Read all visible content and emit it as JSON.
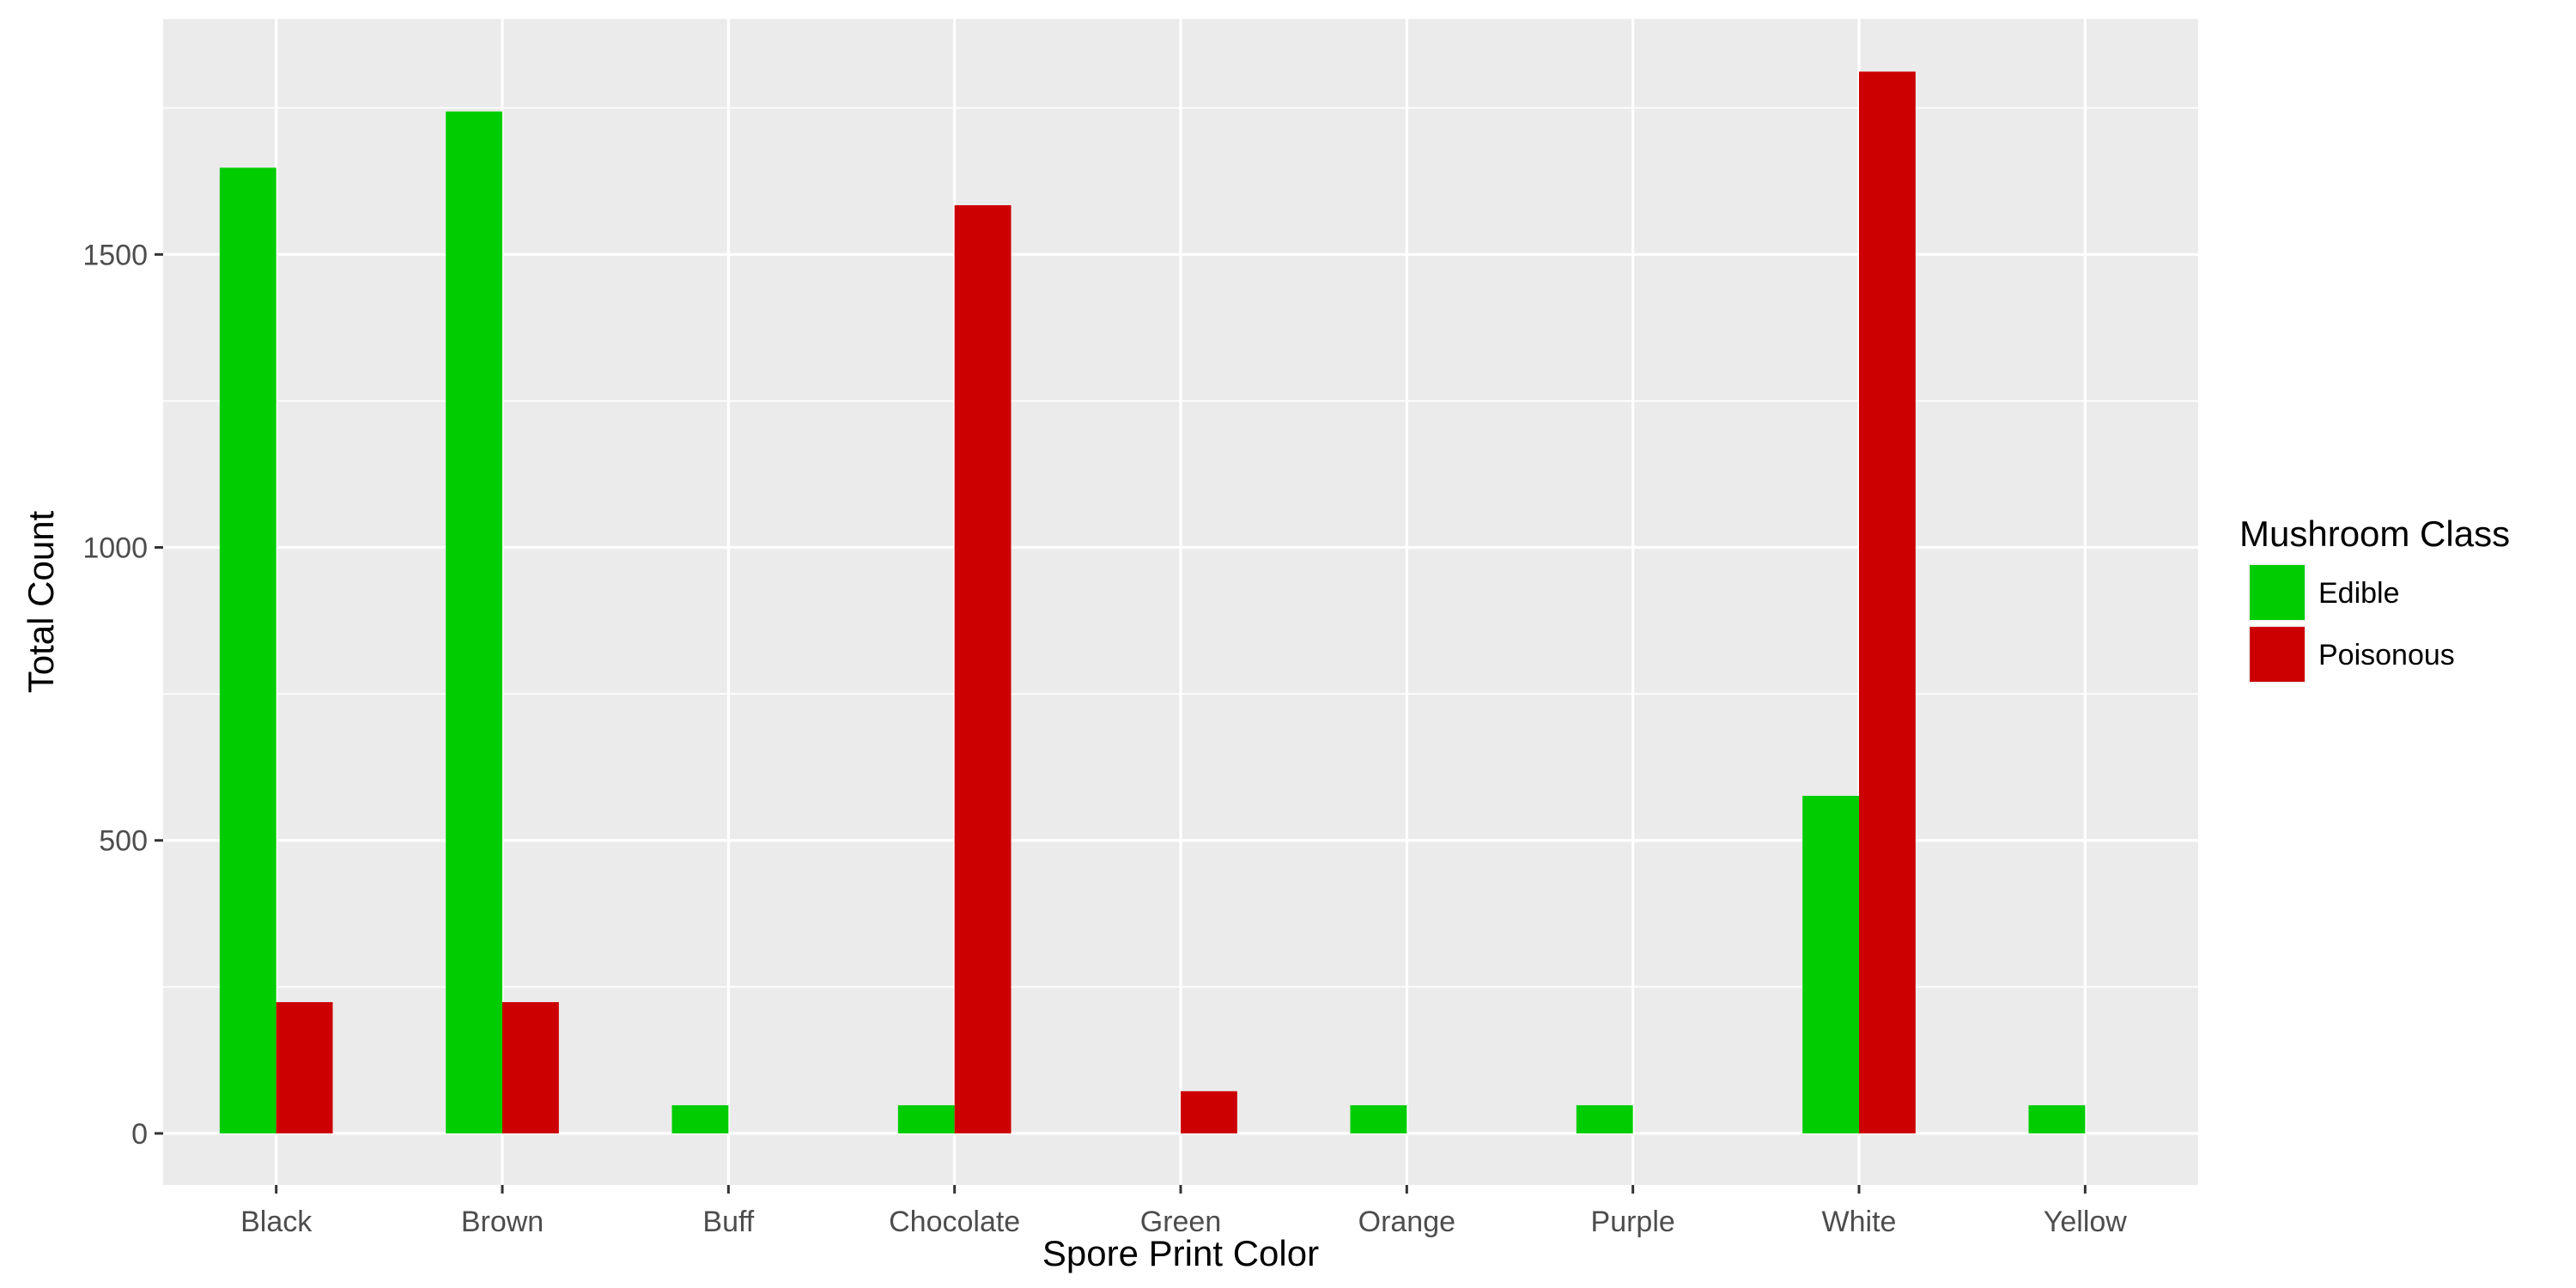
{
  "chart_data": {
    "type": "bar",
    "title": "",
    "xlabel": "Spore Print Color",
    "ylabel": "Total Count",
    "categories": [
      "Black",
      "Brown",
      "Buff",
      "Chocolate",
      "Green",
      "Orange",
      "Purple",
      "White",
      "Yellow"
    ],
    "series": [
      {
        "name": "Edible",
        "color": "#00CC00",
        "values": [
          1648,
          1744,
          48,
          48,
          0,
          48,
          48,
          576,
          48
        ]
      },
      {
        "name": "Poisonous",
        "color": "#CC0000",
        "values": [
          224,
          224,
          0,
          1584,
          72,
          0,
          0,
          1812,
          0
        ]
      }
    ],
    "ylim": [
      -88,
      1902
    ],
    "yticks": [
      0,
      500,
      1000,
      1500
    ],
    "grid": true,
    "legend": {
      "title": "Mushroom Class",
      "position": "right"
    },
    "colors": {
      "panel": "#EBEBEB",
      "grid": "#FFFFFF"
    }
  }
}
